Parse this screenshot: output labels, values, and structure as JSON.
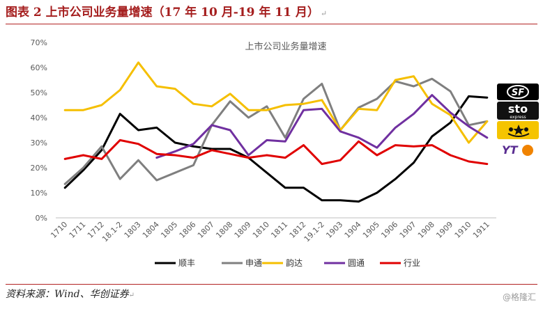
{
  "caption": {
    "text": "图表 2 上市公司业务量增速（17 年 10 月-19 年 11 月）",
    "return_mark": "↵"
  },
  "source": {
    "text": "资料来源：Wind、华创证券",
    "return_mark": "↵"
  },
  "watermark": "@格隆汇",
  "logos": [
    {
      "name": "sf-logo",
      "text": "SF"
    },
    {
      "name": "sto-logo",
      "text": "sto",
      "subtext": "express"
    },
    {
      "name": "zto-logo",
      "text": ""
    },
    {
      "name": "yto-logo",
      "text": "YT"
    }
  ],
  "colors": {
    "顺丰": "#000000",
    "申通": "#7f7f7f",
    "韵达": "#f5bf00",
    "圆通": "#7030a0",
    "行业": "#e00000",
    "rule": "#b22222"
  },
  "chart_data": {
    "type": "line",
    "title": "上市公司业务量增速",
    "xlabel": "",
    "ylabel": "",
    "ylim": [
      0,
      0.7
    ],
    "yticks": [
      0,
      0.1,
      0.2,
      0.3,
      0.4,
      0.5,
      0.6,
      0.7
    ],
    "ytick_labels": [
      "0%",
      "10%",
      "20%",
      "30%",
      "40%",
      "50%",
      "60%",
      "70%"
    ],
    "grid": false,
    "legend": "bottom",
    "categories": [
      "1710",
      "1711",
      "1712",
      "18.1-2",
      "1803",
      "1804",
      "1805",
      "1806",
      "1807",
      "1808",
      "1809",
      "1810",
      "1811",
      "1812",
      "19.1-2",
      "1903",
      "1904",
      "1905",
      "1906",
      "1907",
      "1908",
      "1909",
      "1910",
      "1911"
    ],
    "series": [
      {
        "name": "顺丰",
        "values": [
          0.12,
          0.19,
          0.27,
          0.415,
          0.35,
          0.36,
          0.3,
          0.285,
          0.275,
          0.275,
          0.24,
          0.18,
          0.12,
          0.12,
          0.07,
          0.07,
          0.065,
          0.1,
          0.155,
          0.22,
          0.325,
          0.38,
          0.485,
          0.48
        ]
      },
      {
        "name": "申通",
        "values": [
          0.135,
          0.2,
          0.285,
          0.155,
          0.23,
          0.15,
          0.18,
          0.21,
          0.37,
          0.465,
          0.4,
          0.445,
          0.32,
          0.475,
          0.535,
          0.35,
          0.44,
          0.475,
          0.545,
          0.525,
          0.555,
          0.505,
          0.37,
          0.385
        ]
      },
      {
        "name": "韵达",
        "values": [
          0.43,
          0.43,
          0.45,
          0.51,
          0.62,
          0.525,
          0.515,
          0.455,
          0.445,
          0.495,
          0.43,
          0.43,
          0.45,
          0.455,
          0.47,
          0.35,
          0.435,
          0.43,
          0.55,
          0.565,
          0.455,
          0.41,
          0.3,
          0.385
        ]
      },
      {
        "name": "圆通",
        "values": [
          null,
          null,
          null,
          null,
          null,
          0.24,
          0.265,
          0.295,
          0.37,
          0.35,
          0.25,
          0.31,
          0.305,
          0.43,
          0.435,
          0.345,
          0.32,
          0.28,
          0.36,
          0.415,
          0.49,
          0.42,
          0.365,
          0.32
        ]
      },
      {
        "name": "行业",
        "values": [
          0.235,
          0.25,
          0.235,
          0.31,
          0.295,
          0.255,
          0.25,
          0.24,
          0.27,
          0.255,
          0.24,
          0.25,
          0.24,
          0.29,
          0.215,
          0.23,
          0.305,
          0.25,
          0.29,
          0.285,
          0.29,
          0.25,
          0.225,
          0.215
        ]
      }
    ]
  }
}
